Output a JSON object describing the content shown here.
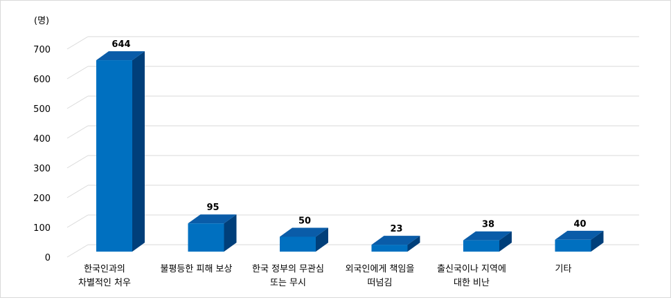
{
  "chart_data": {
    "type": "bar",
    "unit_label": "(명)",
    "categories": [
      [
        "한국인과의",
        "차별적인 처우"
      ],
      [
        "불평등한 피해 보상"
      ],
      [
        "한국 정부의 무관심",
        "또는 무시"
      ],
      [
        "외국인에게 책임을",
        "떠넘김"
      ],
      [
        "출신국이나 지역에",
        "대한 비난"
      ],
      [
        "기타"
      ]
    ],
    "values": [
      644,
      95,
      50,
      23,
      38,
      40
    ],
    "ylim": [
      0,
      700
    ],
    "yticks": [
      0,
      100,
      200,
      300,
      400,
      500,
      600,
      700
    ],
    "grid": true,
    "legend": "none",
    "colors": {
      "bar_front": "#0070C0",
      "bar_side": "#003F7A",
      "bar_top": "#0A5CA8",
      "grid": "#D9D9D9"
    }
  }
}
